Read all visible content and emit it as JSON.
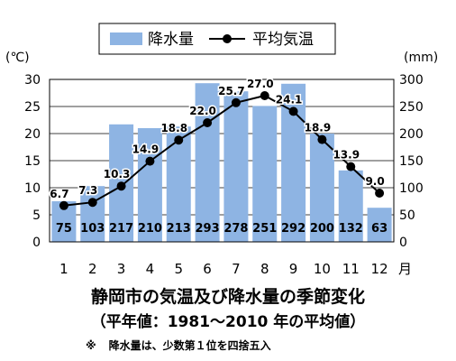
{
  "chart_data": {
    "type": "bar",
    "categories": [
      "1",
      "2",
      "3",
      "4",
      "5",
      "6",
      "7",
      "8",
      "9",
      "10",
      "11",
      "12"
    ],
    "x_unit": "月",
    "series": [
      {
        "name": "降水量",
        "kind": "bar",
        "axis": "right",
        "color": "#8eb4e3",
        "values": [
          75,
          103,
          217,
          210,
          213,
          293,
          278,
          251,
          292,
          200,
          132,
          63
        ]
      },
      {
        "name": "平均気温",
        "kind": "line",
        "axis": "left",
        "color": "#000000",
        "values": [
          6.7,
          7.3,
          10.3,
          14.9,
          18.8,
          22.0,
          25.7,
          27.0,
          24.1,
          18.9,
          13.9,
          9.0
        ]
      }
    ],
    "left_axis": {
      "unit": "(℃)",
      "ylim": [
        0,
        30
      ],
      "ticks": [
        "0",
        "5",
        "10",
        "15",
        "20",
        "25",
        "30"
      ]
    },
    "right_axis": {
      "unit": "(mm)",
      "ylim": [
        0,
        300
      ],
      "ticks": [
        "0",
        "50",
        "100",
        "150",
        "200",
        "250",
        "300"
      ]
    },
    "bar_labels": [
      "75",
      "103",
      "217",
      "210",
      "213",
      "293",
      "278",
      "251",
      "292",
      "200",
      "132",
      "63"
    ],
    "line_labels": [
      "6.7",
      "7.3",
      "10.3",
      "14.9",
      "18.8",
      "22.0",
      "25.7",
      "27.0",
      "24.1",
      "18.9",
      "13.9",
      "9.0"
    ],
    "grid": true,
    "legend_position": "top-center"
  },
  "title": "静岡市の気温及び降水量の季節変化",
  "subtitle": "（平年値：1981～2010 年の平均値）",
  "note_mark": "※",
  "note_text": "降水量は、少数第１位を四捨五入"
}
